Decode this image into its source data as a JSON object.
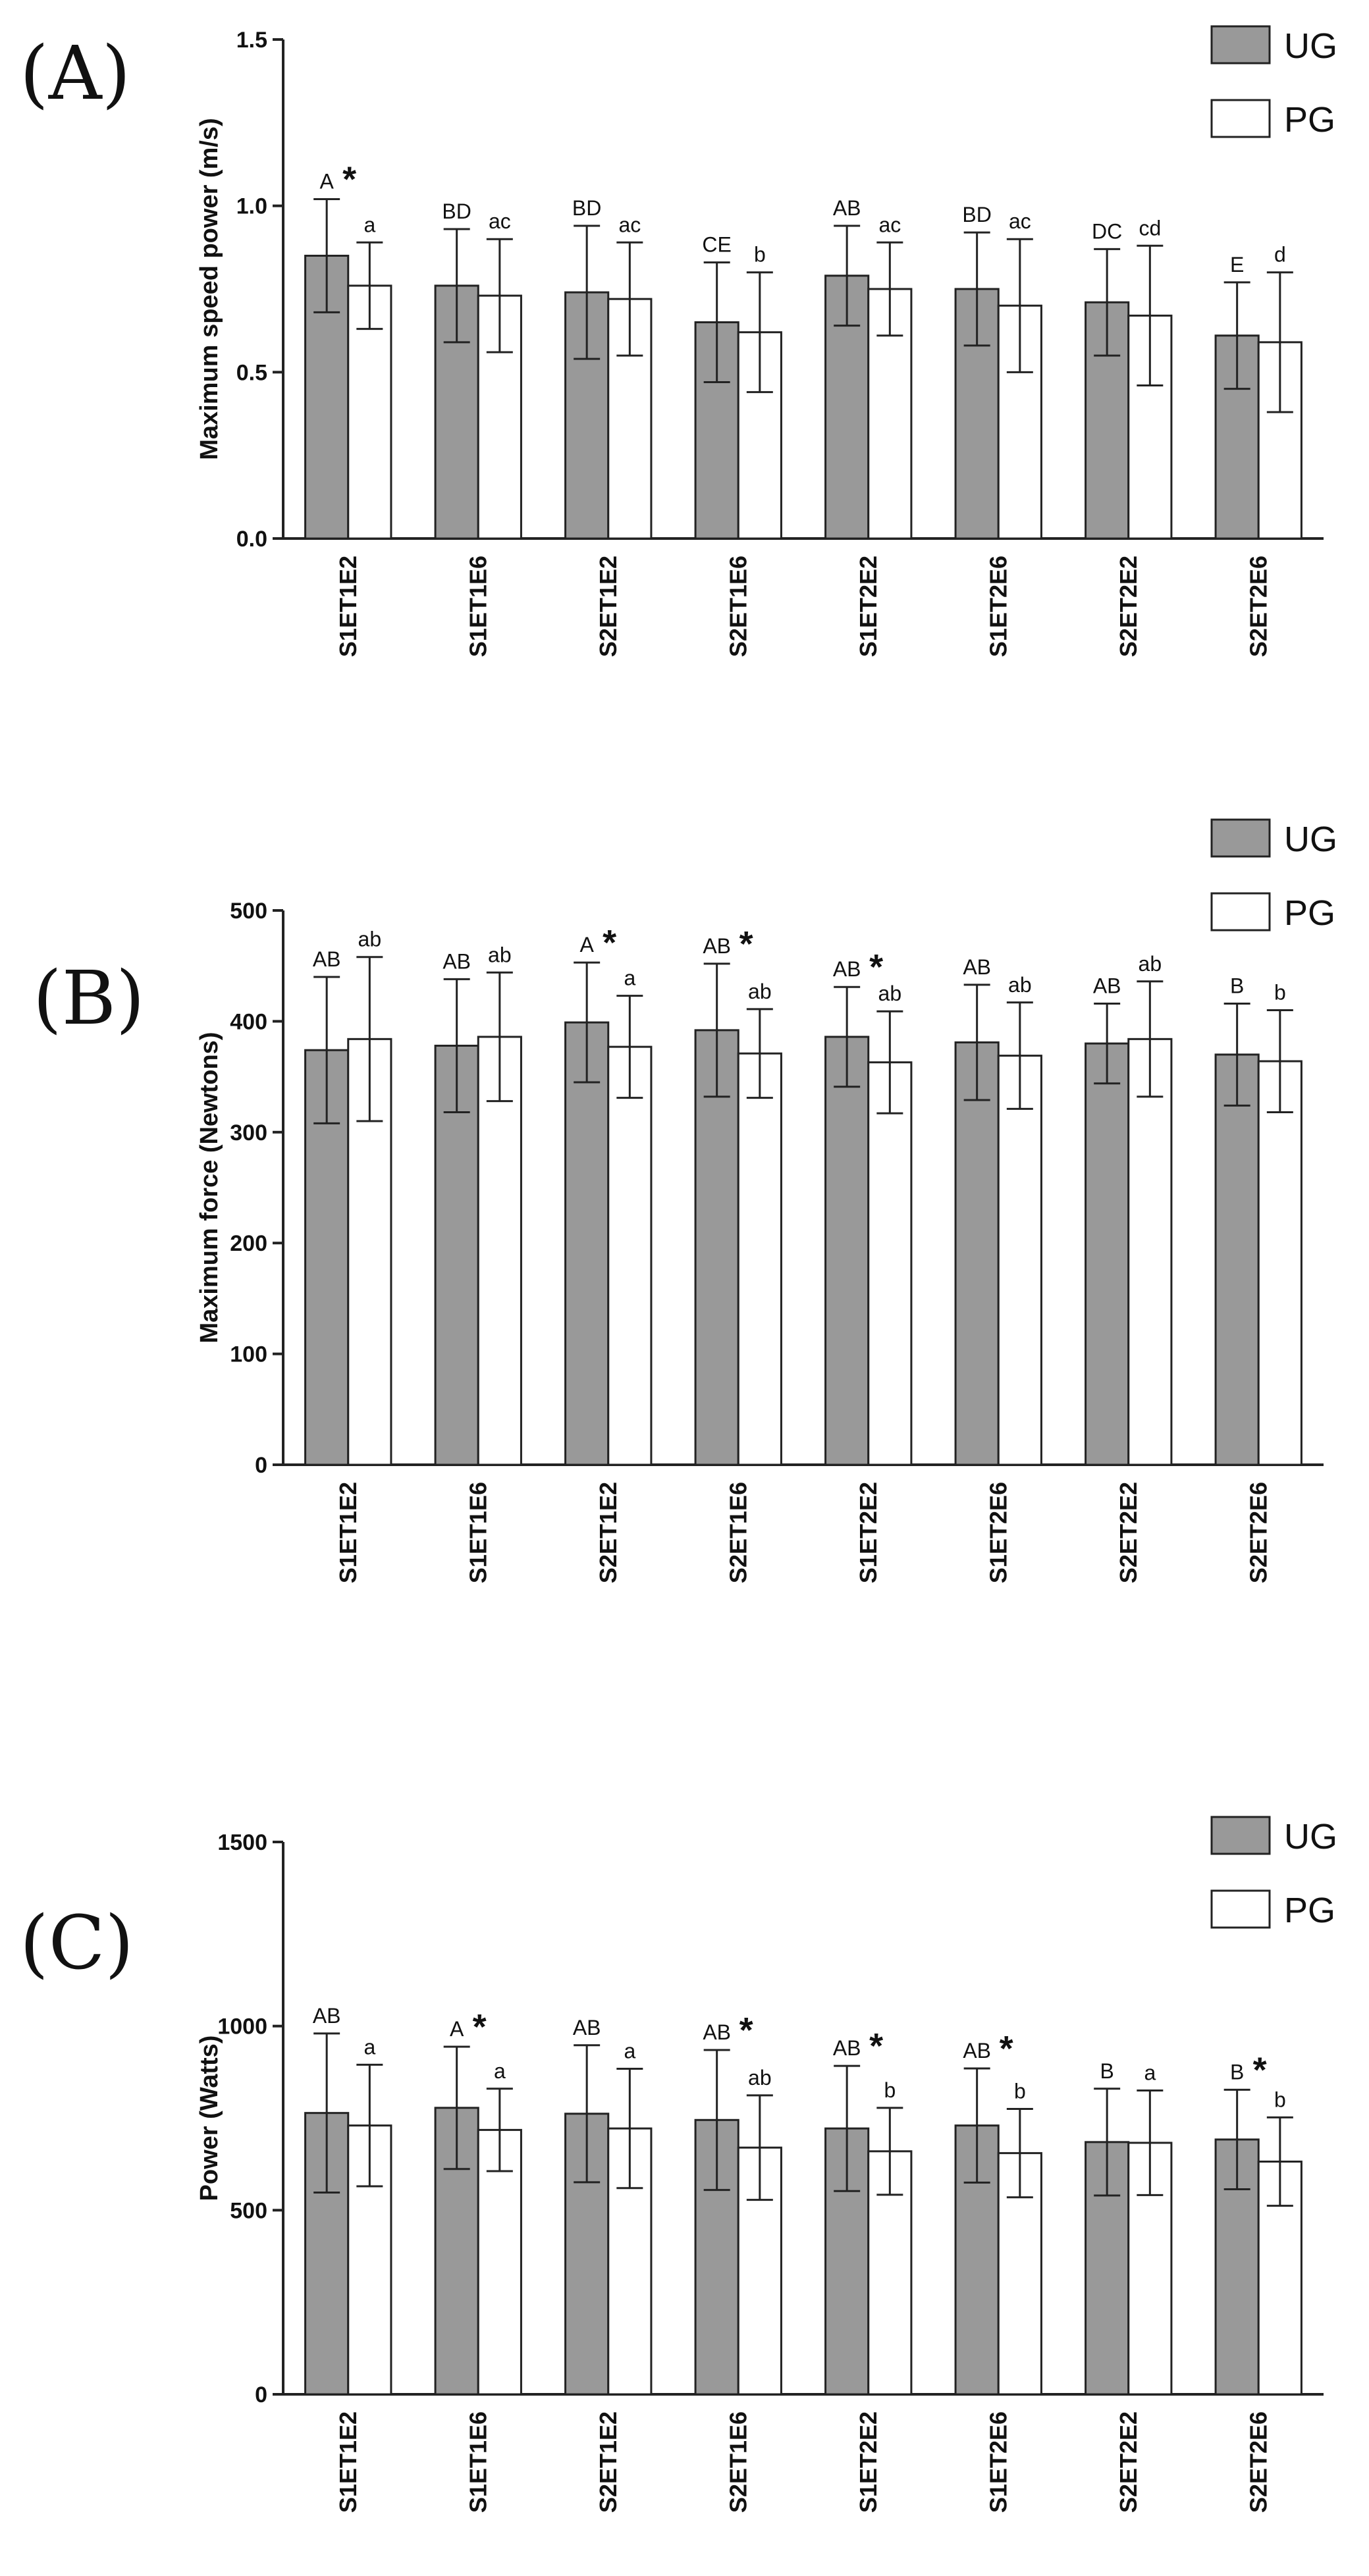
{
  "colors": {
    "ug_fill": "#999999",
    "pg_fill": "#ffffff",
    "stroke": "#222222"
  },
  "chart_data": [
    {
      "type": "bar",
      "panel": "(A)",
      "ylabel": "Maximum speed power (m/s)",
      "ylim": [
        0,
        1.5
      ],
      "yticks": [
        "0.0",
        "0.5",
        "1.0",
        "1.5"
      ],
      "ytick_values": [
        0,
        0.5,
        1.0,
        1.5
      ],
      "categories": [
        "S1ET1E2",
        "S1ET1E6",
        "S2ET1E2",
        "S2ET1E6",
        "S1ET2E2",
        "S1ET2E6",
        "S2ET2E2",
        "S2ET2E6"
      ],
      "legend": {
        "placement": "top-right",
        "entries": [
          "UG",
          "PG"
        ]
      },
      "series": [
        {
          "name": "UG",
          "values": [
            0.85,
            0.76,
            0.74,
            0.65,
            0.79,
            0.75,
            0.71,
            0.61
          ],
          "errors": [
            0.17,
            0.17,
            0.2,
            0.18,
            0.15,
            0.17,
            0.16,
            0.16
          ],
          "labels": [
            "A",
            "BD",
            "BD",
            "CE",
            "AB",
            "BD",
            "DC",
            "E"
          ],
          "stars": [
            true,
            false,
            false,
            false,
            false,
            false,
            false,
            false
          ]
        },
        {
          "name": "PG",
          "values": [
            0.76,
            0.73,
            0.72,
            0.62,
            0.75,
            0.7,
            0.67,
            0.59
          ],
          "errors": [
            0.13,
            0.17,
            0.17,
            0.18,
            0.14,
            0.2,
            0.21,
            0.21
          ],
          "labels": [
            "a",
            "ac",
            "ac",
            "b",
            "ac",
            "ac",
            "cd",
            "d"
          ],
          "stars": [
            false,
            false,
            false,
            false,
            false,
            false,
            false,
            false
          ]
        }
      ]
    },
    {
      "type": "bar",
      "panel": "(B)",
      "ylabel": "Maximum force (Newtons)",
      "ylim": [
        0,
        500
      ],
      "yticks": [
        "0",
        "100",
        "200",
        "300",
        "400",
        "500"
      ],
      "ytick_values": [
        0,
        100,
        200,
        300,
        400,
        500
      ],
      "categories": [
        "S1ET1E2",
        "S1ET1E6",
        "S2ET1E2",
        "S2ET1E6",
        "S1ET2E2",
        "S1ET2E6",
        "S2ET2E2",
        "S2ET2E6"
      ],
      "legend": {
        "placement": "top-right",
        "entries": [
          "UG",
          "PG"
        ]
      },
      "series": [
        {
          "name": "UG",
          "values": [
            374,
            378,
            399,
            392,
            386,
            381,
            380,
            370
          ],
          "errors": [
            66,
            60,
            54,
            60,
            45,
            52,
            36,
            46
          ],
          "labels": [
            "AB",
            "AB",
            "A",
            "AB",
            "AB",
            "AB",
            "AB",
            "B"
          ],
          "stars": [
            false,
            false,
            true,
            true,
            true,
            false,
            false,
            false
          ]
        },
        {
          "name": "PG",
          "values": [
            384,
            386,
            377,
            371,
            363,
            369,
            384,
            364
          ],
          "errors": [
            74,
            58,
            46,
            40,
            46,
            48,
            52,
            46
          ],
          "labels": [
            "ab",
            "ab",
            "a",
            "ab",
            "ab",
            "ab",
            "ab",
            "b"
          ],
          "stars": [
            false,
            false,
            false,
            false,
            false,
            false,
            false,
            false
          ]
        }
      ]
    },
    {
      "type": "bar",
      "panel": "(C)",
      "ylabel": "Power (Watts)",
      "ylim": [
        0,
        1500
      ],
      "yticks": [
        "0",
        "500",
        "1000",
        "1500"
      ],
      "ytick_values": [
        0,
        500,
        1000,
        1500
      ],
      "categories": [
        "S1ET1E2",
        "S1ET1E6",
        "S2ET1E2",
        "S2ET1E6",
        "S1ET2E2",
        "S1ET2E6",
        "S2ET2E2",
        "S2ET2E6"
      ],
      "legend": {
        "placement": "top-right",
        "entries": [
          "UG",
          "PG"
        ]
      },
      "series": [
        {
          "name": "UG",
          "values": [
            764,
            778,
            762,
            745,
            722,
            730,
            685,
            692
          ],
          "errors": [
            216,
            166,
            186,
            190,
            170,
            155,
            145,
            135
          ],
          "labels": [
            "AB",
            "A",
            "AB",
            "AB",
            "AB",
            "AB",
            "B",
            "B"
          ],
          "stars": [
            false,
            true,
            false,
            true,
            true,
            true,
            false,
            true
          ]
        },
        {
          "name": "PG",
          "values": [
            730,
            718,
            722,
            670,
            660,
            655,
            683,
            632
          ],
          "errors": [
            165,
            112,
            162,
            142,
            118,
            120,
            142,
            120
          ],
          "labels": [
            "a",
            "a",
            "a",
            "ab",
            "b",
            "b",
            "a",
            "b"
          ],
          "stars": [
            false,
            false,
            false,
            false,
            false,
            false,
            false,
            false
          ]
        }
      ]
    }
  ]
}
